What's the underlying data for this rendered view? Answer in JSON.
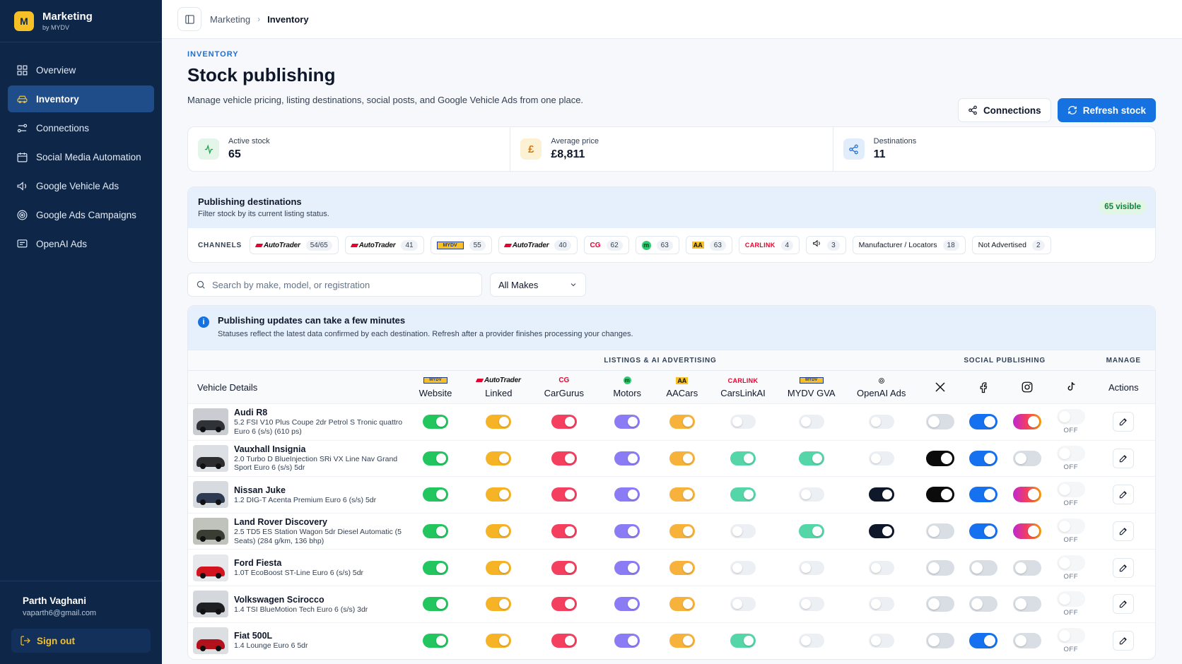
{
  "brand": {
    "badge": "M",
    "title": "Marketing",
    "subtitle": "by MYDV"
  },
  "sidebar": {
    "items": [
      {
        "label": "Overview",
        "icon": "grid-icon",
        "active": false
      },
      {
        "label": "Inventory",
        "icon": "car-icon",
        "active": true
      },
      {
        "label": "Connections",
        "icon": "connections-icon",
        "active": false
      },
      {
        "label": "Social Media Automation",
        "icon": "calendar-icon",
        "active": false
      },
      {
        "label": "Google Vehicle Ads",
        "icon": "megaphone-icon",
        "active": false
      },
      {
        "label": "Google Ads Campaigns",
        "icon": "target-icon",
        "active": false
      },
      {
        "label": "OpenAI Ads",
        "icon": "chat-icon",
        "active": false
      }
    ]
  },
  "user": {
    "name": "Parth Vaghani",
    "email": "vaparth6@gmail.com",
    "signout_label": "Sign out"
  },
  "breadcrumb": {
    "parent": "Marketing",
    "current": "Inventory"
  },
  "page": {
    "eyebrow": "INVENTORY",
    "title": "Stock publishing",
    "description": "Manage vehicle pricing, listing destinations, social posts, and Google Vehicle Ads from one place.",
    "connections_label": "Connections",
    "refresh_label": "Refresh stock"
  },
  "stats": [
    {
      "label": "Active stock",
      "value": "65",
      "icon": "activity-icon",
      "bg": "#e4f6e9",
      "fg": "#16a34a"
    },
    {
      "label": "Average price",
      "value": "£8,811",
      "icon": "pound-icon",
      "bg": "#fdf1d3",
      "fg": "#d97706"
    },
    {
      "label": "Destinations",
      "value": "11",
      "icon": "share-icon",
      "bg": "#e2edfc",
      "fg": "#1d6fd6"
    }
  ],
  "destinations": {
    "title": "Publishing destinations",
    "subtitle": "Filter stock by its current listing status.",
    "visible_badge": "65 visible",
    "channels_label": "CHANNELS",
    "chips": [
      {
        "logo": "autotrader",
        "name": "AutoTrader",
        "count": "54/65"
      },
      {
        "logo": "autotrader",
        "name": "AutoTrader",
        "count": "41"
      },
      {
        "logo": "mydv",
        "name": "MYDV",
        "count": "55"
      },
      {
        "logo": "autotrader",
        "name": "AutoTrader",
        "count": "40"
      },
      {
        "logo": "cargurus",
        "name": "CG",
        "count": "62"
      },
      {
        "logo": "motors",
        "name": "m",
        "count": "63"
      },
      {
        "logo": "aa",
        "name": "AA",
        "count": "63"
      },
      {
        "logo": "carlink",
        "name": "CARLINK",
        "count": "4"
      },
      {
        "logo": "megaphone",
        "name": "",
        "count": "3"
      },
      {
        "logo": "text",
        "name": "Manufacturer / Locators",
        "count": "18"
      },
      {
        "logo": "text",
        "name": "Not Advertised",
        "count": "2"
      }
    ]
  },
  "filters": {
    "search_placeholder": "Search by make, model, or registration",
    "make_select": "All Makes"
  },
  "notice": {
    "title": "Publishing updates can take a few minutes",
    "subtitle": "Statuses reflect the latest data confirmed by each destination. Refresh after a provider finishes processing your changes."
  },
  "table": {
    "group_listings": "LISTINGS & AI ADVERTISING",
    "group_social": "SOCIAL PUBLISHING",
    "group_manage": "MANAGE",
    "vehicle_header": "Vehicle Details",
    "actions_header": "Actions",
    "off_label": "OFF",
    "columns": [
      {
        "label": "Website",
        "logo": "mydv"
      },
      {
        "label": "Linked",
        "logo": "autotrader"
      },
      {
        "label": "CarGurus",
        "logo": "cargurus"
      },
      {
        "label": "Motors",
        "logo": "motors"
      },
      {
        "label": "AACars",
        "logo": "aa"
      },
      {
        "label": "CarsLinkAI",
        "logo": "carlink"
      },
      {
        "label": "MYDV GVA",
        "logo": "mydv"
      },
      {
        "label": "OpenAI Ads",
        "logo": "openai"
      },
      {
        "label": "",
        "logo": "x-icon"
      },
      {
        "label": "",
        "logo": "facebook-icon"
      },
      {
        "label": "",
        "logo": "instagram-icon"
      },
      {
        "label": "",
        "logo": "tiktok-icon"
      }
    ],
    "colors": {
      "website": "#22c55e",
      "linked": "#f5b325",
      "cargurus": "#f43f5e",
      "motors": "#8b7cf6",
      "aacars": "#f7b23b",
      "carslink": "#55d6a8",
      "gva": "#55d6a8",
      "openai": "#0f172a",
      "x": "#0b0b0b",
      "facebook": "#1671f0"
    },
    "rows": [
      {
        "name": "Audi R8",
        "desc": "5.2 FSI V10 Plus Coupe 2dr Petrol S Tronic quattro Euro 6 (s/s) (610 ps)",
        "car_color": "#2f3338",
        "bg": "#c9cdd2",
        "states": [
          1,
          1,
          1,
          1,
          1,
          0,
          0,
          0,
          0,
          1,
          1,
          0
        ]
      },
      {
        "name": "Vauxhall Insignia",
        "desc": "2.0 Turbo D BlueInjection SRi VX Line Nav Grand Sport Euro 6 (s/s) 5dr",
        "car_color": "#2b2d31",
        "bg": "#dcdfe3",
        "states": [
          1,
          1,
          1,
          1,
          1,
          1,
          1,
          0,
          1,
          1,
          0,
          0
        ]
      },
      {
        "name": "Nissan Juke",
        "desc": "1.2 DIG-T Acenta Premium Euro 6 (s/s) 5dr",
        "car_color": "#2d3a52",
        "bg": "#d7dbe0",
        "states": [
          1,
          1,
          1,
          1,
          1,
          1,
          0,
          1,
          1,
          1,
          1,
          0
        ]
      },
      {
        "name": "Land Rover Discovery",
        "desc": "2.5 TD5 ES Station Wagon 5dr Diesel Automatic (5 Seats) (284 g/km, 136 bhp)",
        "car_color": "#3a3d33",
        "bg": "#bfc3bb",
        "states": [
          1,
          1,
          1,
          1,
          1,
          0,
          1,
          1,
          0,
          1,
          1,
          0
        ]
      },
      {
        "name": "Ford Fiesta",
        "desc": "1.0T EcoBoost ST-Line Euro 6 (s/s) 5dr",
        "car_color": "#d3141e",
        "bg": "#e5e7ea",
        "states": [
          1,
          1,
          1,
          1,
          1,
          0,
          0,
          0,
          0,
          0,
          0,
          0
        ]
      },
      {
        "name": "Volkswagen Scirocco",
        "desc": "1.4 TSI BlueMotion Tech Euro 6 (s/s) 3dr",
        "car_color": "#1d1f22",
        "bg": "#d4d7db",
        "states": [
          1,
          1,
          1,
          1,
          1,
          0,
          0,
          0,
          0,
          0,
          0,
          0
        ]
      },
      {
        "name": "Fiat 500L",
        "desc": "1.4 Lounge Euro 6 5dr",
        "car_color": "#b3121c",
        "bg": "#dcdfe2",
        "states": [
          1,
          1,
          1,
          1,
          1,
          1,
          0,
          0,
          0,
          1,
          0,
          0
        ]
      }
    ]
  }
}
